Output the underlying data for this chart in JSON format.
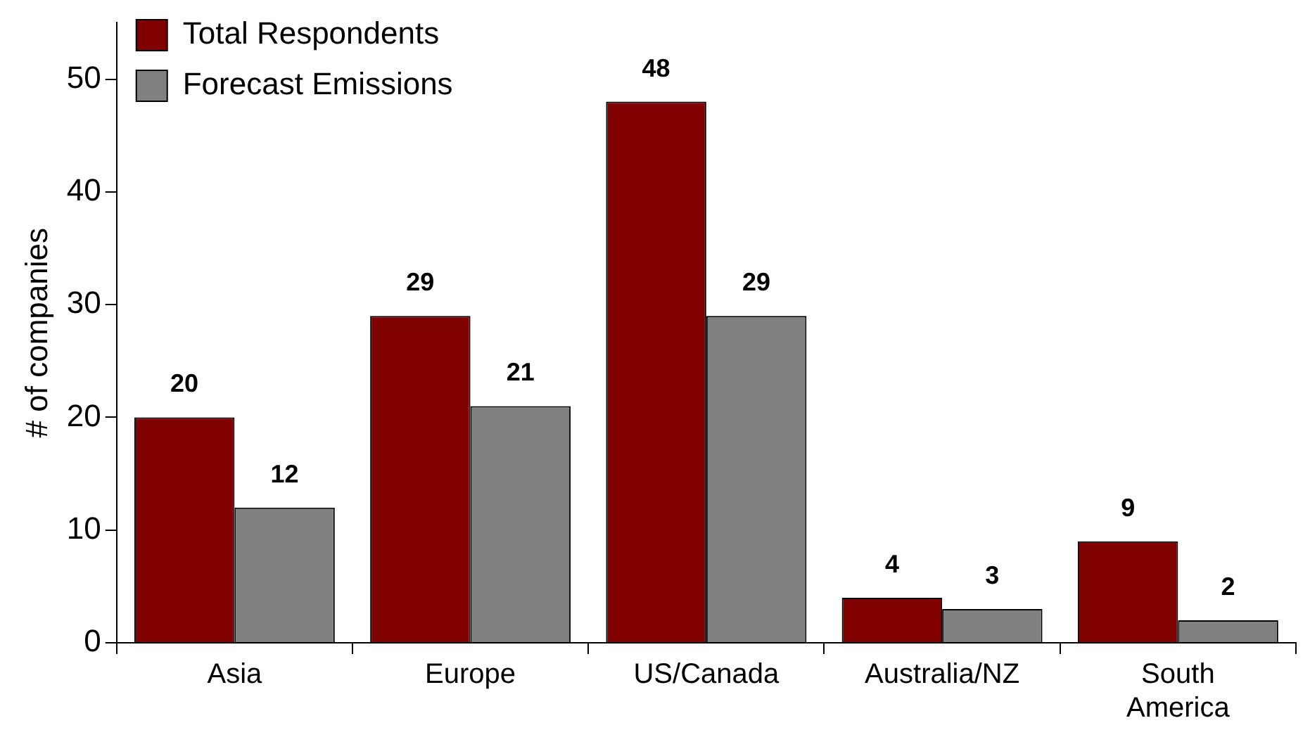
{
  "chart_data": {
    "type": "bar",
    "ylabel": "# of companies",
    "categories": [
      "Asia",
      "Europe",
      "US/Canada",
      "Australia/NZ",
      "South America"
    ],
    "series": [
      {
        "name": "Total Respondents",
        "color": "#800000",
        "values": [
          20,
          29,
          48,
          4,
          9
        ]
      },
      {
        "name": "Forecast Emissions",
        "color": "#808080",
        "values": [
          12,
          21,
          29,
          3,
          2
        ]
      }
    ],
    "ylim": [
      0,
      55
    ],
    "yticks": [
      0,
      10,
      20,
      30,
      40,
      50
    ],
    "grid": false,
    "legend": "top left",
    "data_labels": true
  }
}
